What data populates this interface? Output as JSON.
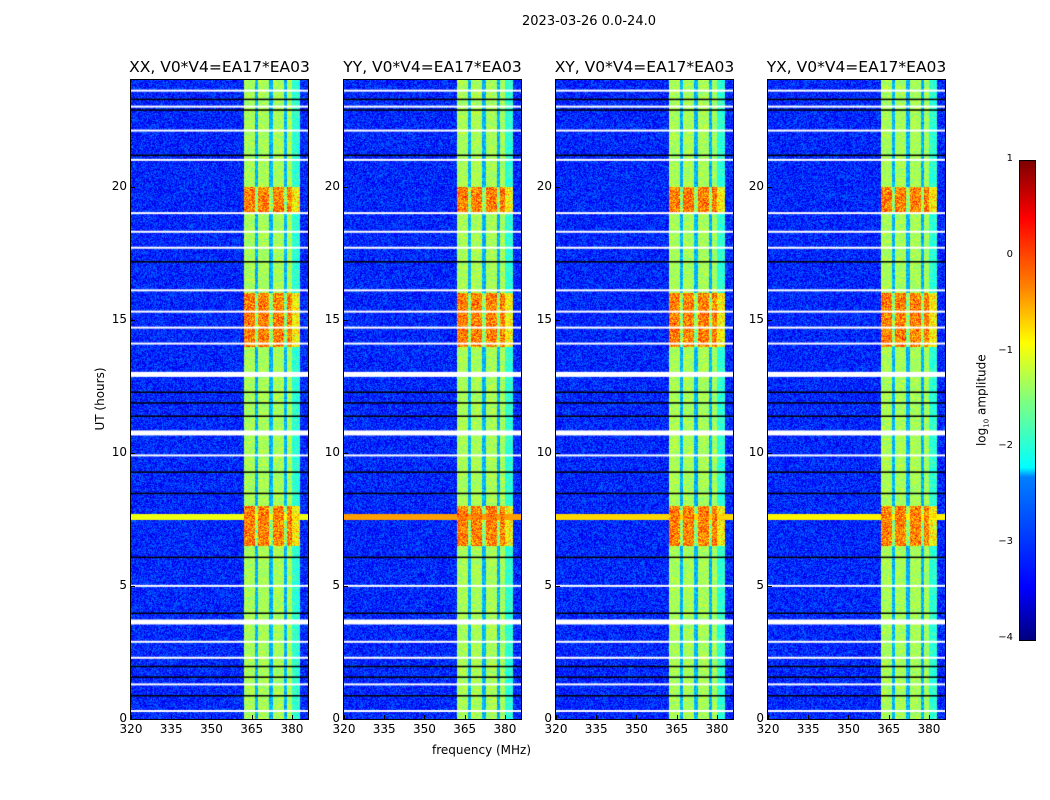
{
  "chart_data": {
    "type": "heatmap",
    "title": "2023-03-26 0.0-24.0",
    "xlabel": "frequency (MHz)",
    "ylabel": "UT (hours)",
    "xlim": [
      320,
      386
    ],
    "ylim": [
      0,
      24
    ],
    "xticks": [
      "320",
      "335",
      "350",
      "365",
      "380"
    ],
    "xtick_values": [
      320,
      335,
      350,
      365,
      380
    ],
    "yticks": [
      "0",
      "5",
      "10",
      "15",
      "20"
    ],
    "ytick_values": [
      0,
      5,
      10,
      15,
      20
    ],
    "colorbar": {
      "label_prefix": "log",
      "label_sub": "10",
      "label_suffix": " amplitude",
      "clim": [
        -4,
        1
      ],
      "ticks": [
        "1",
        "0",
        "−1",
        "−2",
        "−3",
        "−4"
      ],
      "tick_values": [
        1,
        0,
        -1,
        -2,
        -3,
        -4
      ],
      "colormap": "jet"
    },
    "panels": [
      {
        "title": "XX, V0*V4=EA17*EA03",
        "rfi_line_strength": 0.6
      },
      {
        "title": "YY, V0*V4=EA17*EA03",
        "rfi_line_strength": 1.0
      },
      {
        "title": "XY, V0*V4=EA17*EA03",
        "rfi_line_strength": 0.8
      },
      {
        "title": "YX, V0*V4=EA17*EA03",
        "rfi_line_strength": 0.7
      }
    ],
    "background_level": -3.2,
    "rfi_band_mhz": [
      362,
      383
    ],
    "rfi_band_level": -1.3,
    "rfi_band_gaps_mhz": [
      366.5,
      372,
      377.5
    ],
    "rfi_hot_hours": [
      [
        19,
        20
      ],
      [
        14,
        16
      ],
      [
        6.5,
        8
      ]
    ],
    "rfi_broadband_hour": 7.6,
    "flagged_white_hours": [
      0.3,
      1.3,
      2.3,
      2.9,
      3.7,
      5.0,
      9.9,
      10.8,
      13.0,
      14.1,
      14.7,
      15.3,
      16.1,
      17.7,
      18.3,
      19.0,
      21.0,
      22.1,
      23.0,
      23.6
    ],
    "flagged_black_hours": [
      0.9,
      1.6,
      2.0,
      4.0,
      6.1,
      8.5,
      9.3,
      11.4,
      11.9,
      12.3,
      17.2,
      21.2,
      22.9,
      23.3
    ]
  }
}
